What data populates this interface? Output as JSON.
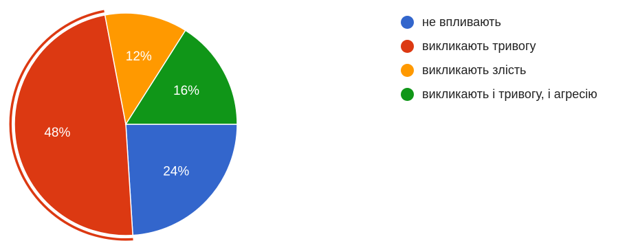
{
  "chart_data": {
    "type": "pie",
    "categories": [
      "не впливають",
      "викликають тривогу",
      "викликають злість",
      "викликають і тривогу, і агресію"
    ],
    "values": [
      24,
      48,
      12,
      16
    ],
    "value_labels": [
      "24%",
      "48%",
      "12%",
      "16%"
    ],
    "colors": [
      "#3366cc",
      "#dc3912",
      "#ff9900",
      "#109618"
    ],
    "highlighted_slice": "викликають тривогу",
    "start_angle_deg": 0,
    "direction": "clockwise",
    "legend_position": "right",
    "title": ""
  }
}
